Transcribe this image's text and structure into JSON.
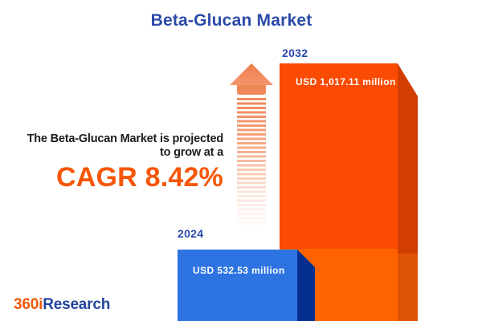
{
  "title": "Beta-Glucan Market",
  "annotation": {
    "line1": "The Beta-Glucan Market is projected",
    "line2": "to grow at a",
    "cagr": "CAGR 8.42%"
  },
  "bars": [
    {
      "year_label": "2024",
      "value_label": "USD 532.53 million"
    },
    {
      "year_label": "2032",
      "value_label": "USD 1,017.11 million"
    }
  ],
  "logo": {
    "prefix": "360i",
    "suffix": "Research"
  },
  "colors": {
    "title-blue": "#2B4AA8",
    "orange-front": "#FB4A02",
    "orange-front-light": "#FF6301",
    "orange-side": "#D23E02",
    "orange-side-light": "#DE5404",
    "blue-front": "#2E73E2",
    "blue-side": "#063090",
    "arrow-orange": "#F08756",
    "cagr-orange": "#F75608",
    "text-dark": "#1C1C1C",
    "logo-orange": "#F2590A",
    "logo-blue": "#24449E"
  },
  "chart_data": {
    "type": "bar",
    "title": "Beta-Glucan Market",
    "categories": [
      "2024",
      "2032"
    ],
    "values": [
      532.53,
      1017.11
    ],
    "unit": "USD million",
    "value_labels": [
      "USD 532.53 million",
      "USD 1,017.11 million"
    ],
    "bar_colors": [
      "#2E73E2",
      "#FB4A02"
    ],
    "cagr_percent": 8.42,
    "annotation": "The Beta-Glucan Market is projected to grow at a CAGR 8.42%",
    "legend": "none",
    "grid": false,
    "axes": "hidden",
    "style": "3d-infographic-bars-with-growth-arrow"
  }
}
